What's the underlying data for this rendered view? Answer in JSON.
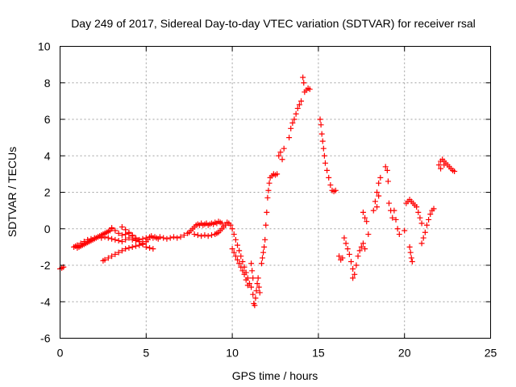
{
  "chart_data": {
    "type": "scatter",
    "title": "Day 249 of 2017, Sidereal Day-to-day VTEC variation (SDTVAR) for receiver rsal",
    "xlabel": "GPS time / hours",
    "ylabel": "SDTVAR / TECUs",
    "xlim": [
      0,
      25
    ],
    "ylim": [
      -6,
      10
    ],
    "xticks": [
      0,
      5,
      10,
      15,
      20,
      25
    ],
    "yticks": [
      -6,
      -4,
      -2,
      0,
      2,
      4,
      6,
      8,
      10
    ],
    "grid": true,
    "marker": "+",
    "color": "#ff0000",
    "series": [
      {
        "name": "rsal",
        "points": [
          [
            0.0,
            -2.2
          ],
          [
            0.1,
            -2.15
          ],
          [
            0.2,
            -2.1
          ],
          [
            0.8,
            -1.0
          ],
          [
            0.9,
            -0.95
          ],
          [
            1.0,
            -1.05
          ],
          [
            1.1,
            -1.0
          ],
          [
            1.2,
            -0.95
          ],
          [
            1.3,
            -0.9
          ],
          [
            1.4,
            -0.85
          ],
          [
            1.5,
            -0.8
          ],
          [
            1.6,
            -0.75
          ],
          [
            1.7,
            -0.7
          ],
          [
            1.8,
            -0.65
          ],
          [
            1.9,
            -0.6
          ],
          [
            2.0,
            -0.55
          ],
          [
            2.1,
            -0.5
          ],
          [
            2.2,
            -0.45
          ],
          [
            2.3,
            -0.4
          ],
          [
            2.4,
            -0.35
          ],
          [
            2.5,
            -0.3
          ],
          [
            2.6,
            -0.25
          ],
          [
            2.7,
            -0.2
          ],
          [
            2.8,
            -0.15
          ],
          [
            2.9,
            -0.1
          ],
          [
            3.0,
            0.0
          ],
          [
            1.0,
            -0.9
          ],
          [
            1.2,
            -0.8
          ],
          [
            1.4,
            -0.7
          ],
          [
            1.6,
            -0.6
          ],
          [
            1.8,
            -0.55
          ],
          [
            2.0,
            -0.5
          ],
          [
            2.2,
            -0.45
          ],
          [
            2.4,
            -0.5
          ],
          [
            2.6,
            -0.45
          ],
          [
            2.8,
            -0.5
          ],
          [
            3.0,
            -0.55
          ],
          [
            3.2,
            -0.6
          ],
          [
            3.4,
            -0.65
          ],
          [
            3.6,
            -0.7
          ],
          [
            3.8,
            -0.6
          ],
          [
            4.0,
            -0.5
          ],
          [
            4.2,
            -0.6
          ],
          [
            4.4,
            -0.65
          ],
          [
            4.6,
            -0.6
          ],
          [
            4.8,
            -0.55
          ],
          [
            5.0,
            -0.5
          ],
          [
            3.0,
            0.05
          ],
          [
            3.2,
            -0.1
          ],
          [
            3.4,
            -0.25
          ],
          [
            3.6,
            -0.35
          ],
          [
            3.8,
            -0.3
          ],
          [
            4.0,
            -0.25
          ],
          [
            4.2,
            -0.35
          ],
          [
            4.4,
            -0.5
          ],
          [
            4.6,
            -0.7
          ],
          [
            4.8,
            -0.85
          ],
          [
            5.0,
            -1.0
          ],
          [
            5.2,
            -1.05
          ],
          [
            5.4,
            -1.1
          ],
          [
            3.6,
            0.1
          ],
          [
            3.8,
            -0.05
          ],
          [
            4.0,
            -0.2
          ],
          [
            4.2,
            -0.4
          ],
          [
            4.4,
            -0.55
          ],
          [
            4.6,
            -0.7
          ],
          [
            4.8,
            -0.85
          ],
          [
            2.5,
            -1.75
          ],
          [
            2.6,
            -1.7
          ],
          [
            2.8,
            -1.6
          ],
          [
            3.0,
            -1.5
          ],
          [
            3.2,
            -1.4
          ],
          [
            3.4,
            -1.3
          ],
          [
            3.6,
            -1.2
          ],
          [
            3.8,
            -1.1
          ],
          [
            4.0,
            -1.05
          ],
          [
            4.2,
            -1.0
          ],
          [
            4.4,
            -0.95
          ],
          [
            4.6,
            -0.9
          ],
          [
            4.8,
            -0.8
          ],
          [
            5.0,
            -0.7
          ],
          [
            5.1,
            -0.6
          ],
          [
            5.2,
            -0.45
          ],
          [
            5.3,
            -0.4
          ],
          [
            5.4,
            -0.5
          ],
          [
            5.5,
            -0.45
          ],
          [
            5.6,
            -0.5
          ],
          [
            5.7,
            -0.55
          ],
          [
            5.8,
            -0.45
          ],
          [
            6.0,
            -0.5
          ],
          [
            6.2,
            -0.55
          ],
          [
            6.4,
            -0.5
          ],
          [
            6.6,
            -0.45
          ],
          [
            6.8,
            -0.5
          ],
          [
            7.0,
            -0.45
          ],
          [
            7.2,
            -0.35
          ],
          [
            7.4,
            -0.25
          ],
          [
            7.5,
            -0.2
          ],
          [
            7.6,
            -0.1
          ],
          [
            7.7,
            0.0
          ],
          [
            7.8,
            0.1
          ],
          [
            7.9,
            0.2
          ],
          [
            8.0,
            0.25
          ],
          [
            8.1,
            0.2
          ],
          [
            8.2,
            0.3
          ],
          [
            8.3,
            0.2
          ],
          [
            8.4,
            0.25
          ],
          [
            8.5,
            0.3
          ],
          [
            8.6,
            0.2
          ],
          [
            8.7,
            0.25
          ],
          [
            8.8,
            0.3
          ],
          [
            8.9,
            0.25
          ],
          [
            9.0,
            0.35
          ],
          [
            9.1,
            0.3
          ],
          [
            9.2,
            0.4
          ],
          [
            9.3,
            0.35
          ],
          [
            9.4,
            0.3
          ],
          [
            7.8,
            -0.3
          ],
          [
            8.0,
            -0.35
          ],
          [
            8.2,
            -0.4
          ],
          [
            8.4,
            -0.35
          ],
          [
            8.6,
            -0.4
          ],
          [
            8.8,
            -0.35
          ],
          [
            9.0,
            -0.3
          ],
          [
            9.1,
            -0.25
          ],
          [
            9.2,
            -0.2
          ],
          [
            9.3,
            -0.1
          ],
          [
            9.4,
            0.0
          ],
          [
            9.5,
            0.1
          ],
          [
            9.6,
            0.2
          ],
          [
            9.7,
            0.35
          ],
          [
            9.8,
            0.3
          ],
          [
            9.9,
            0.2
          ],
          [
            10.0,
            0.0
          ],
          [
            10.1,
            -0.3
          ],
          [
            10.2,
            -0.6
          ],
          [
            10.3,
            -0.9
          ],
          [
            10.4,
            -1.2
          ],
          [
            10.5,
            -1.5
          ],
          [
            10.6,
            -1.8
          ],
          [
            10.7,
            -2.1
          ],
          [
            10.8,
            -2.4
          ],
          [
            10.9,
            -2.7
          ],
          [
            11.0,
            -3.0
          ],
          [
            11.1,
            -3.2
          ],
          [
            10.0,
            -1.1
          ],
          [
            10.1,
            -1.3
          ],
          [
            10.2,
            -1.5
          ],
          [
            10.3,
            -1.7
          ],
          [
            10.4,
            -1.9
          ],
          [
            10.5,
            -2.1
          ],
          [
            10.6,
            -2.3
          ],
          [
            10.7,
            -2.5
          ],
          [
            10.8,
            -2.8
          ],
          [
            10.9,
            -3.1
          ],
          [
            11.1,
            -1.9
          ],
          [
            11.15,
            -2.3
          ],
          [
            11.2,
            -2.7
          ],
          [
            11.2,
            -3.6
          ],
          [
            11.25,
            -4.1
          ],
          [
            11.3,
            -4.2
          ],
          [
            11.35,
            -3.8
          ],
          [
            11.4,
            -3.4
          ],
          [
            11.45,
            -3.0
          ],
          [
            11.5,
            -2.7
          ],
          [
            11.55,
            -3.2
          ],
          [
            11.6,
            -3.5
          ],
          [
            11.7,
            -1.9
          ],
          [
            11.75,
            -1.6
          ],
          [
            11.8,
            -1.3
          ],
          [
            11.85,
            -1.0
          ],
          [
            11.9,
            -0.6
          ],
          [
            11.95,
            0.2
          ],
          [
            12.0,
            0.9
          ],
          [
            12.05,
            1.7
          ],
          [
            12.1,
            2.1
          ],
          [
            12.15,
            2.5
          ],
          [
            12.2,
            2.8
          ],
          [
            12.3,
            2.9
          ],
          [
            12.4,
            3.0
          ],
          [
            12.5,
            2.95
          ],
          [
            12.6,
            3.0
          ],
          [
            12.7,
            4.0
          ],
          [
            12.8,
            4.2
          ],
          [
            12.9,
            3.8
          ],
          [
            13.0,
            4.4
          ],
          [
            13.3,
            5.0
          ],
          [
            13.4,
            5.5
          ],
          [
            13.5,
            5.8
          ],
          [
            13.6,
            6.0
          ],
          [
            13.7,
            6.3
          ],
          [
            13.8,
            6.6
          ],
          [
            13.9,
            6.8
          ],
          [
            14.0,
            7.0
          ],
          [
            14.1,
            8.3
          ],
          [
            14.15,
            8.0
          ],
          [
            14.2,
            7.5
          ],
          [
            14.3,
            7.6
          ],
          [
            14.4,
            7.7
          ],
          [
            14.5,
            7.65
          ],
          [
            15.1,
            6.0
          ],
          [
            15.15,
            5.7
          ],
          [
            15.2,
            5.2
          ],
          [
            15.25,
            4.8
          ],
          [
            15.3,
            4.4
          ],
          [
            15.35,
            4.0
          ],
          [
            15.4,
            3.6
          ],
          [
            15.5,
            3.2
          ],
          [
            15.6,
            2.8
          ],
          [
            15.7,
            2.4
          ],
          [
            15.8,
            2.1
          ],
          [
            15.9,
            2.05
          ],
          [
            16.0,
            2.1
          ],
          [
            16.2,
            -1.5
          ],
          [
            16.3,
            -1.7
          ],
          [
            16.4,
            -1.6
          ],
          [
            16.5,
            -0.5
          ],
          [
            16.6,
            -0.8
          ],
          [
            16.7,
            -1.1
          ],
          [
            16.8,
            -1.4
          ],
          [
            16.9,
            -1.8
          ],
          [
            17.0,
            -2.2
          ],
          [
            17.1,
            -2.5
          ],
          [
            17.0,
            -2.7
          ],
          [
            17.2,
            -2.0
          ],
          [
            17.3,
            -1.5
          ],
          [
            17.4,
            -1.2
          ],
          [
            17.5,
            -1.0
          ],
          [
            17.6,
            -0.8
          ],
          [
            17.6,
            0.9
          ],
          [
            17.7,
            0.6
          ],
          [
            17.8,
            0.4
          ],
          [
            17.9,
            -0.3
          ],
          [
            17.7,
            -1.1
          ],
          [
            18.2,
            1.0
          ],
          [
            18.3,
            1.5
          ],
          [
            18.4,
            2.0
          ],
          [
            18.5,
            2.5
          ],
          [
            18.6,
            2.8
          ],
          [
            18.4,
            1.2
          ],
          [
            18.5,
            1.8
          ],
          [
            18.9,
            3.4
          ],
          [
            19.0,
            3.2
          ],
          [
            19.05,
            2.6
          ],
          [
            19.1,
            1.4
          ],
          [
            19.2,
            1.0
          ],
          [
            19.3,
            0.6
          ],
          [
            19.4,
            1.0
          ],
          [
            19.5,
            0.5
          ],
          [
            19.6,
            0.0
          ],
          [
            19.7,
            -0.3
          ],
          [
            20.0,
            -0.1
          ],
          [
            20.1,
            1.4
          ],
          [
            20.2,
            1.5
          ],
          [
            20.3,
            1.6
          ],
          [
            20.4,
            1.5
          ],
          [
            20.5,
            1.4
          ],
          [
            20.6,
            1.3
          ],
          [
            20.7,
            1.2
          ],
          [
            20.8,
            0.9
          ],
          [
            20.9,
            0.6
          ],
          [
            21.0,
            0.3
          ],
          [
            20.3,
            -1.0
          ],
          [
            20.35,
            -1.3
          ],
          [
            20.4,
            -1.6
          ],
          [
            20.45,
            -1.8
          ],
          [
            21.0,
            -0.8
          ],
          [
            21.1,
            -0.5
          ],
          [
            21.2,
            -0.2
          ],
          [
            21.3,
            0.2
          ],
          [
            21.4,
            0.5
          ],
          [
            21.5,
            0.8
          ],
          [
            21.6,
            1.0
          ],
          [
            21.7,
            1.1
          ],
          [
            22.0,
            3.5
          ],
          [
            22.1,
            3.7
          ],
          [
            22.2,
            3.8
          ],
          [
            22.3,
            3.7
          ],
          [
            22.4,
            3.6
          ],
          [
            22.5,
            3.5
          ],
          [
            22.6,
            3.4
          ],
          [
            22.7,
            3.3
          ],
          [
            22.8,
            3.2
          ],
          [
            22.9,
            3.15
          ],
          [
            22.1,
            3.3
          ],
          [
            22.3,
            3.5
          ]
        ]
      }
    ]
  }
}
